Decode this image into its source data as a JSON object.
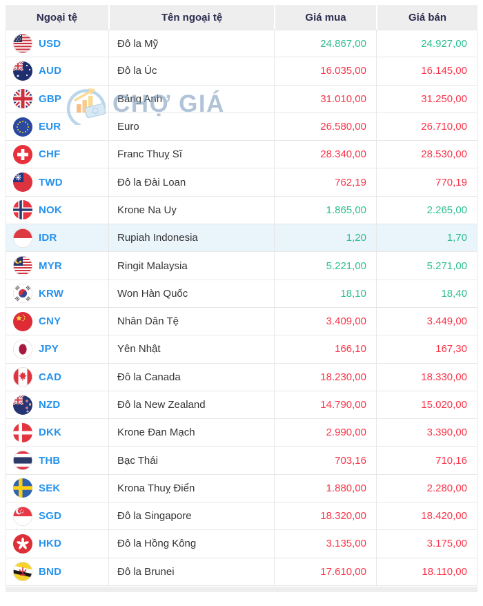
{
  "watermark": {
    "text": "CHỢ GIÁ",
    "icon": "chart-growth-logo-icon"
  },
  "table": {
    "columns": [
      {
        "label": "Ngoại tệ"
      },
      {
        "label": "Tên ngoại tệ"
      },
      {
        "label": "Giá mua"
      },
      {
        "label": "Giá bán"
      }
    ],
    "rows": [
      {
        "code": "USD",
        "name": "Đô la Mỹ",
        "buy": "24.867,00",
        "sell": "24.927,00",
        "trend": "up",
        "highlight": false
      },
      {
        "code": "AUD",
        "name": "Đô la Úc",
        "buy": "16.035,00",
        "sell": "16.145,00",
        "trend": "down",
        "highlight": false
      },
      {
        "code": "GBP",
        "name": "Bảng Anh",
        "buy": "31.010,00",
        "sell": "31.250,00",
        "trend": "down",
        "highlight": false
      },
      {
        "code": "EUR",
        "name": "Euro",
        "buy": "26.580,00",
        "sell": "26.710,00",
        "trend": "down",
        "highlight": false
      },
      {
        "code": "CHF",
        "name": "Franc Thuỵ Sĩ",
        "buy": "28.340,00",
        "sell": "28.530,00",
        "trend": "down",
        "highlight": false
      },
      {
        "code": "TWD",
        "name": "Đô la Đài Loan",
        "buy": "762,19",
        "sell": "770,19",
        "trend": "down",
        "highlight": false
      },
      {
        "code": "NOK",
        "name": "Krone Na Uy",
        "buy": "1.865,00",
        "sell": "2.265,00",
        "trend": "up",
        "highlight": false
      },
      {
        "code": "IDR",
        "name": "Rupiah Indonesia",
        "buy": "1,20",
        "sell": "1,70",
        "trend": "up",
        "highlight": true
      },
      {
        "code": "MYR",
        "name": "Ringit Malaysia",
        "buy": "5.221,00",
        "sell": "5.271,00",
        "trend": "up",
        "highlight": false
      },
      {
        "code": "KRW",
        "name": "Won Hàn Quốc",
        "buy": "18,10",
        "sell": "18,40",
        "trend": "up",
        "highlight": false
      },
      {
        "code": "CNY",
        "name": "Nhân Dân Tệ",
        "buy": "3.409,00",
        "sell": "3.449,00",
        "trend": "down",
        "highlight": false
      },
      {
        "code": "JPY",
        "name": "Yên Nhật",
        "buy": "166,10",
        "sell": "167,30",
        "trend": "down",
        "highlight": false
      },
      {
        "code": "CAD",
        "name": "Đô la Canada",
        "buy": "18.230,00",
        "sell": "18.330,00",
        "trend": "down",
        "highlight": false
      },
      {
        "code": "NZD",
        "name": "Đô la New Zealand",
        "buy": "14.790,00",
        "sell": "15.020,00",
        "trend": "down",
        "highlight": false
      },
      {
        "code": "DKK",
        "name": "Krone Đan Mạch",
        "buy": "2.990,00",
        "sell": "3.390,00",
        "trend": "down",
        "highlight": false
      },
      {
        "code": "THB",
        "name": "Bạc Thái",
        "buy": "703,16",
        "sell": "710,16",
        "trend": "down",
        "highlight": false
      },
      {
        "code": "SEK",
        "name": "Krona Thuỵ Điển",
        "buy": "1.880,00",
        "sell": "2.280,00",
        "trend": "down",
        "highlight": false
      },
      {
        "code": "SGD",
        "name": "Đô la Singapore",
        "buy": "18.320,00",
        "sell": "18.420,00",
        "trend": "down",
        "highlight": false
      },
      {
        "code": "HKD",
        "name": "Đô la Hồng Kông",
        "buy": "3.135,00",
        "sell": "3.175,00",
        "trend": "down",
        "highlight": false
      },
      {
        "code": "BND",
        "name": "Đô la Brunei",
        "buy": "17.610,00",
        "sell": "18.110,00",
        "trend": "down",
        "highlight": false
      }
    ]
  },
  "colors": {
    "price_up": "#2cbe90",
    "price_down": "#fa3449",
    "currency_code": "#2592ec",
    "header_text": "#2d2d51",
    "header_bg": "#eeeeee",
    "highlight_row": "#eaf4fb",
    "border": "#e7e7e7",
    "name_text": "#333333"
  }
}
